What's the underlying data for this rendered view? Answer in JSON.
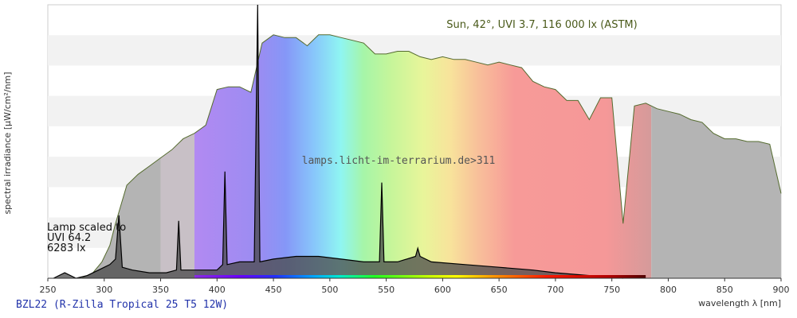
{
  "chart_data": {
    "type": "area",
    "xlabel": "wavelength λ [nm]",
    "ylabel": "spectral irradiance [µW/cm²/nm]",
    "xlim": [
      250,
      900
    ],
    "x_ticks": [
      250,
      300,
      350,
      400,
      450,
      500,
      550,
      600,
      650,
      700,
      750,
      800,
      850,
      900
    ],
    "ylim": [
      0,
      100
    ],
    "grid": "horizontal bands",
    "sun_label": "Sun, 42°, UVI 3.7, 116 000 lx (ASTM)",
    "lamp_label_lines": [
      "Lamp scaled to",
      "UVI 64.2",
      "6283 lx"
    ],
    "watermark": "lamps.licht-im-terrarium.de>311",
    "caption": "BZL22 (R-Zilla Tropical 25 T5 12W)",
    "series": [
      {
        "points": [
          [
            280,
            0
          ],
          [
            290,
            2
          ],
          [
            298,
            6
          ],
          [
            305,
            12
          ],
          [
            310,
            20
          ],
          [
            315,
            27
          ],
          [
            320,
            34
          ],
          [
            330,
            38
          ],
          [
            340,
            41
          ],
          [
            350,
            44
          ],
          [
            360,
            47
          ],
          [
            370,
            51
          ],
          [
            380,
            53
          ],
          [
            390,
            56
          ],
          [
            400,
            69
          ],
          [
            410,
            70
          ],
          [
            420,
            70
          ],
          [
            430,
            68
          ],
          [
            440,
            86
          ],
          [
            450,
            89
          ],
          [
            460,
            88
          ],
          [
            470,
            88
          ],
          [
            480,
            85
          ],
          [
            490,
            89
          ],
          [
            500,
            89
          ],
          [
            510,
            88
          ],
          [
            520,
            87
          ],
          [
            530,
            86
          ],
          [
            540,
            82
          ],
          [
            550,
            82
          ],
          [
            560,
            83
          ],
          [
            570,
            83
          ],
          [
            580,
            81
          ],
          [
            590,
            80
          ],
          [
            600,
            81
          ],
          [
            610,
            80
          ],
          [
            620,
            80
          ],
          [
            630,
            79
          ],
          [
            640,
            78
          ],
          [
            650,
            79
          ],
          [
            660,
            78
          ],
          [
            670,
            77
          ],
          [
            680,
            72
          ],
          [
            690,
            70
          ],
          [
            700,
            69
          ],
          [
            710,
            65
          ],
          [
            720,
            65
          ],
          [
            730,
            58
          ],
          [
            740,
            66
          ],
          [
            750,
            66
          ],
          [
            760,
            20
          ],
          [
            770,
            63
          ],
          [
            780,
            64
          ],
          [
            790,
            62
          ],
          [
            800,
            61
          ],
          [
            810,
            60
          ],
          [
            820,
            58
          ],
          [
            830,
            57
          ],
          [
            840,
            53
          ],
          [
            850,
            51
          ],
          [
            860,
            51
          ],
          [
            870,
            50
          ],
          [
            880,
            50
          ],
          [
            890,
            49
          ],
          [
            900,
            31
          ]
        ],
        "color": "#556b2f"
      },
      {
        "points": [
          [
            255,
            0
          ],
          [
            265,
            2
          ],
          [
            275,
            0
          ],
          [
            285,
            1
          ],
          [
            295,
            3
          ],
          [
            300,
            4
          ],
          [
            305,
            5
          ],
          [
            310,
            7
          ],
          [
            313,
            23
          ],
          [
            316,
            4
          ],
          [
            325,
            3
          ],
          [
            340,
            2
          ],
          [
            355,
            2
          ],
          [
            364,
            3
          ],
          [
            366,
            21
          ],
          [
            368,
            3
          ],
          [
            380,
            3
          ],
          [
            400,
            3
          ],
          [
            405,
            5
          ],
          [
            407,
            39
          ],
          [
            409,
            5
          ],
          [
            420,
            6
          ],
          [
            433,
            6
          ],
          [
            436,
            100
          ],
          [
            438,
            6
          ],
          [
            450,
            7
          ],
          [
            470,
            8
          ],
          [
            490,
            8
          ],
          [
            510,
            7
          ],
          [
            530,
            6
          ],
          [
            544,
            6
          ],
          [
            546,
            35
          ],
          [
            548,
            6
          ],
          [
            560,
            6
          ],
          [
            576,
            8
          ],
          [
            578,
            11
          ],
          [
            580,
            8
          ],
          [
            590,
            6
          ],
          [
            620,
            5
          ],
          [
            650,
            4
          ],
          [
            680,
            3
          ],
          [
            700,
            2
          ],
          [
            730,
            1
          ],
          [
            760,
            0
          ]
        ],
        "color": "#111111"
      }
    ]
  }
}
